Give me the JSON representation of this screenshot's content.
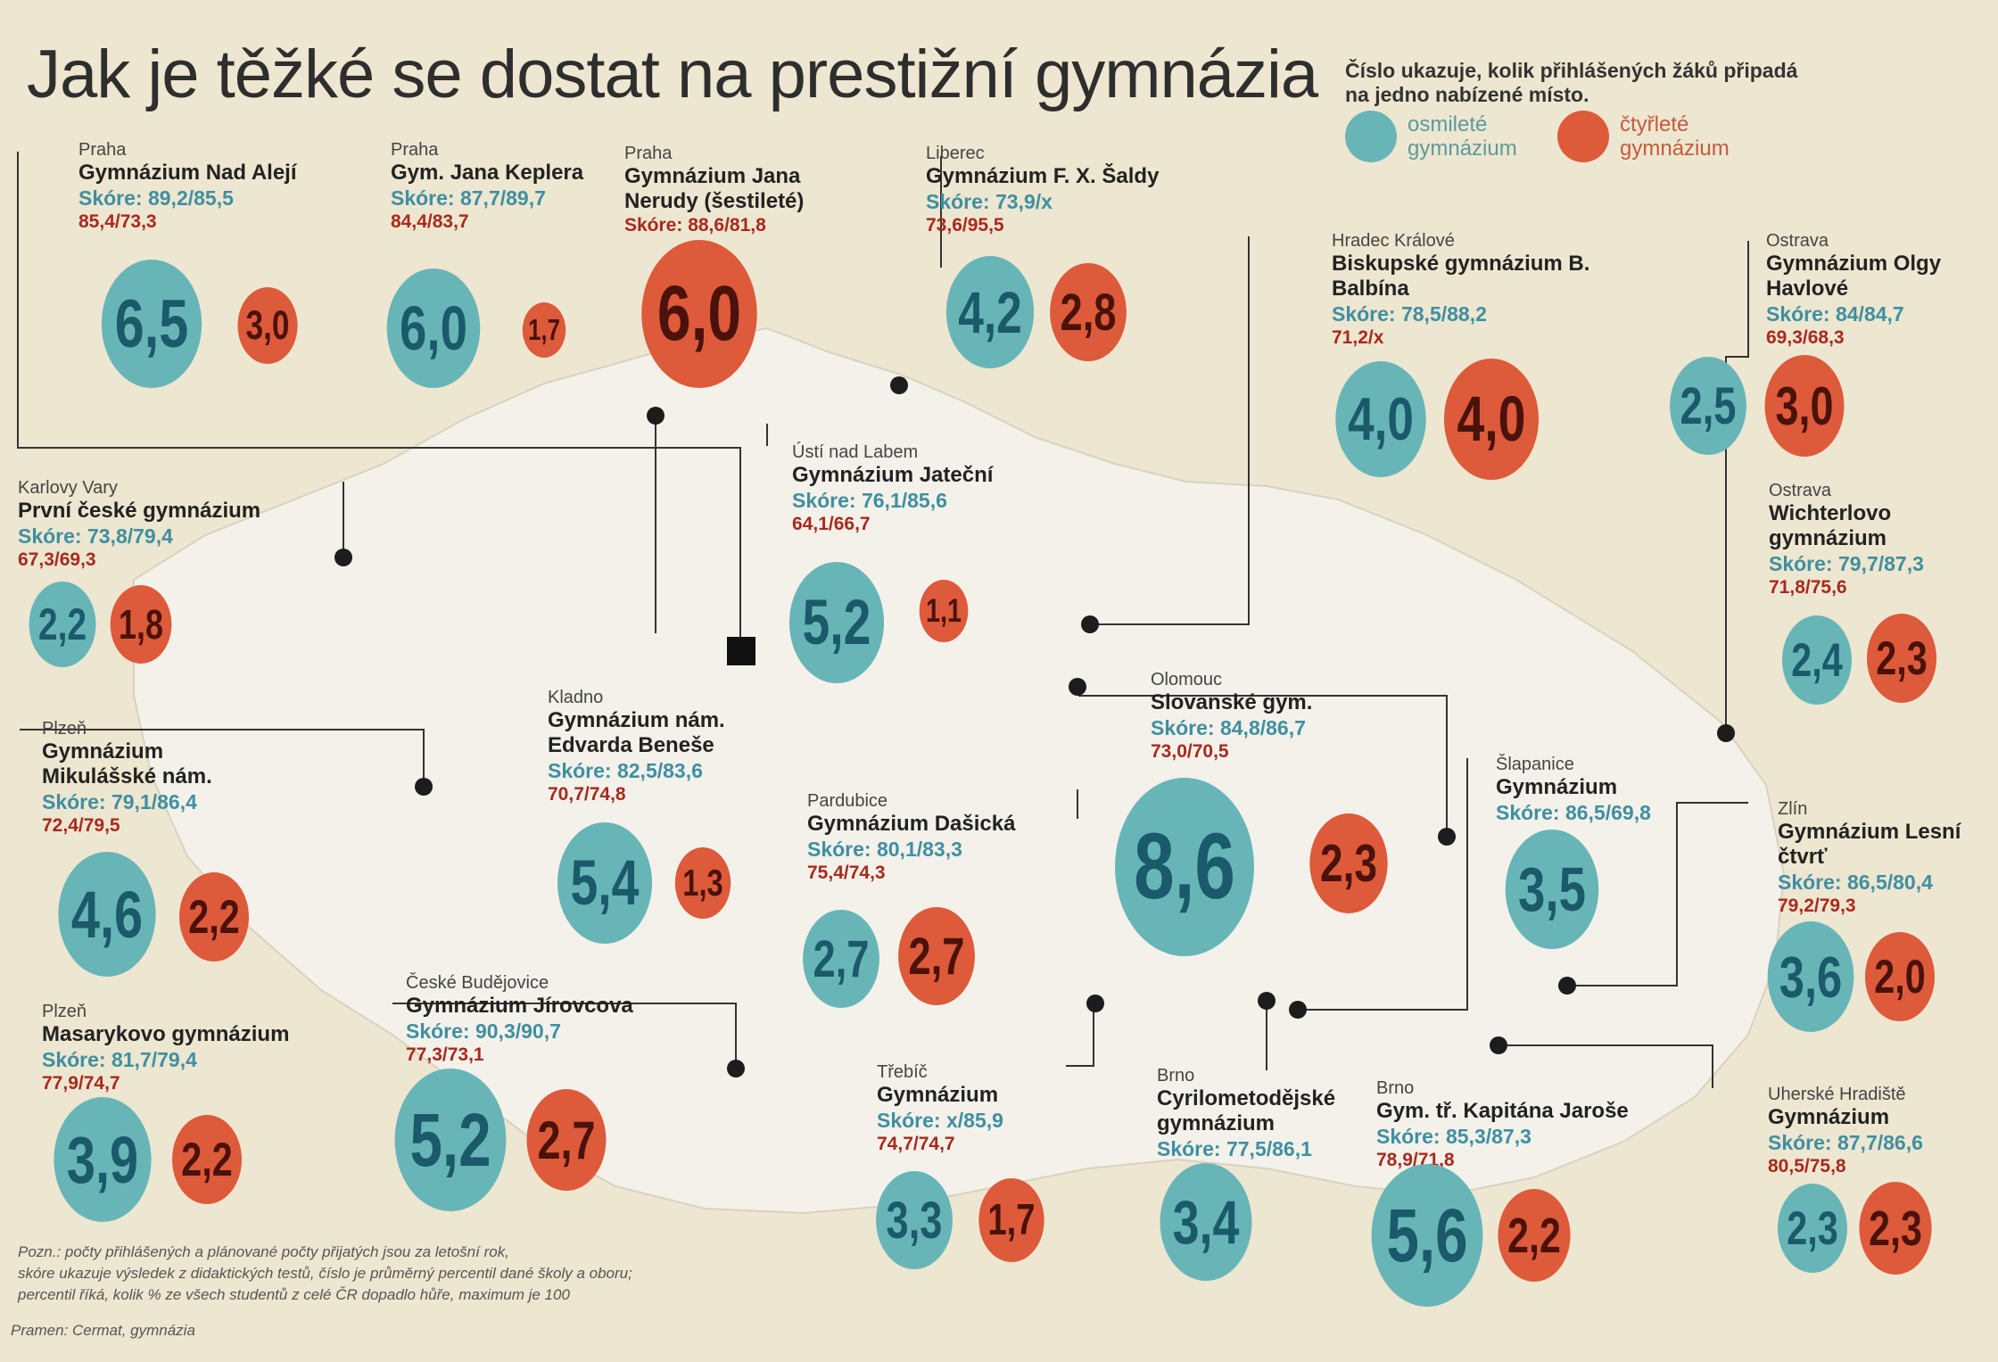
{
  "title": "Jak je těžké se dostat na prestižní gymnázia",
  "legend": {
    "text": "Číslo ukazuje, kolik přihlášených žáků připadá na jedno nabízené místo.",
    "eight_year": "osmileté gymnázium",
    "four_year": "čtyřleté gymnázium",
    "eight_color": "#68b5b8",
    "four_color": "#dd5a3a"
  },
  "schools": [
    {
      "city": "Praha",
      "name": "Gymnázium Nad Alejí",
      "score8": "Skóre:  89,2/85,5",
      "score4": "85,4/73,3",
      "ratio8": "6,5",
      "ratio4": "3,0"
    },
    {
      "city": "Praha",
      "name": "Gym. Jana Keplera",
      "score8": "Skóre:  87,7/89,7",
      "score4": "84,4/83,7",
      "ratio8": "6,0",
      "ratio4": "1,7"
    },
    {
      "city": "Praha",
      "name": "Gymnázium Jana Nerudy (šestileté)",
      "score8": "",
      "score4": "Skóre:  88,6/81,8",
      "ratio8": "",
      "ratio4": "6,0"
    },
    {
      "city": "Liberec",
      "name": "Gymnázium F. X. Šaldy",
      "score8": "Skóre:  73,9/x",
      "score4": "73,6/95,5",
      "ratio8": "4,2",
      "ratio4": "2,8"
    },
    {
      "city": "Hradec Králové",
      "name": "Biskupské gymnázium B. Balbína",
      "score8": "Skóre:  78,5/88,2",
      "score4": "71,2/x",
      "ratio8": "4,0",
      "ratio4": "4,0"
    },
    {
      "city": "Ostrava",
      "name": "Gymnázium Olgy Havlové",
      "score8": "Skóre:  84/84,7",
      "score4": "69,3/68,3",
      "ratio8": "2,5",
      "ratio4": "3,0"
    },
    {
      "city": "Karlovy Vary",
      "name": "První české gymnázium",
      "score8": "Skóre:  73,8/79,4",
      "score4": "67,3/69,3",
      "ratio8": "2,2",
      "ratio4": "1,8"
    },
    {
      "city": "Ústí nad Labem",
      "name": "Gymnázium Jateční",
      "score8": "Skóre:  76,1/85,6",
      "score4": "64,1/66,7",
      "ratio8": "5,2",
      "ratio4": "1,1"
    },
    {
      "city": "Ostrava",
      "name": "Wichterlovo gymnázium",
      "score8": "Skóre:  79,7/87,3",
      "score4": "71,8/75,6",
      "ratio8": "2,4",
      "ratio4": "2,3"
    },
    {
      "city": "Kladno",
      "name": "Gymnázium nám. Edvarda Beneše",
      "score8": "Skóre:  82,5/83,6",
      "score4": "70,7/74,8",
      "ratio8": "5,4",
      "ratio4": "1,3"
    },
    {
      "city": "Plzeň",
      "name": "Gymnázium Mikulášské nám.",
      "score8": "Skóre:  79,1/86,4",
      "score4": "72,4/79,5",
      "ratio8": "4,6",
      "ratio4": "2,2"
    },
    {
      "city": "Olomouc",
      "name": "Slovanské gym.",
      "score8": "Skóre:  84,8/86,7",
      "score4": "73,0/70,5",
      "ratio8": "8,6",
      "ratio4": "2,3"
    },
    {
      "city": "Pardubice",
      "name": "Gymnázium Dašická",
      "score8": "Skóre:  80,1/83,3",
      "score4": "75,4/74,3",
      "ratio8": "2,7",
      "ratio4": "2,7"
    },
    {
      "city": "Šlapanice",
      "name": "Gymnázium",
      "score8": "Skóre:  86,5/69,8",
      "score4": "",
      "ratio8": "3,5",
      "ratio4": ""
    },
    {
      "city": "Zlín",
      "name": "Gymnázium Lesní čtvrť",
      "score8": "Skóre:  86,5/80,4",
      "score4": "79,2/79,3",
      "ratio8": "3,6",
      "ratio4": "2,0"
    },
    {
      "city": "Plzeň",
      "name": "Masarykovo gymnázium",
      "score8": "Skóre:  81,7/79,4",
      "score4": "77,9/74,7",
      "ratio8": "3,9",
      "ratio4": "2,2"
    },
    {
      "city": "České Budějovice",
      "name": "Gymnázium Jírovcova",
      "score8": "Skóre:  90,3/90,7",
      "score4": "77,3/73,1",
      "ratio8": "5,2",
      "ratio4": "2,7"
    },
    {
      "city": "Třebíč",
      "name": "Gymnázium",
      "score8": "Skóre:  x/85,9",
      "score4": "74,7/74,7",
      "ratio8": "3,3",
      "ratio4": "1,7"
    },
    {
      "city": "Brno",
      "name": "Cyrilometodějské gymnázium",
      "score8": "Skóre:  77,5/86,1",
      "score4": "",
      "ratio8": "3,4",
      "ratio4": ""
    },
    {
      "city": "Brno",
      "name": "Gym. tř. Kapitána Jaroše",
      "score8": "Skóre:  85,3/87,3",
      "score4": "78,9/71,8",
      "ratio8": "5,6",
      "ratio4": "2,2"
    },
    {
      "city": "Uherské Hradiště",
      "name": "Gymnázium",
      "score8": "Skóre:  87,7/86,6",
      "score4": "80,5/75,8",
      "ratio8": "2,3",
      "ratio4": "2,3"
    }
  ],
  "note": [
    "Pozn.: počty přihlášených a plánované počty přijatých jsou za letošní rok,",
    "skóre ukazuje výsledek z didaktických testů, číslo je průměrný percentil dané školy a oboru;",
    "percentil říká, kolik % ze všech studentů z celé ČR dopadlo hůře, maximum je 100"
  ],
  "source": "Pramen: Cermat, gymnázia"
}
